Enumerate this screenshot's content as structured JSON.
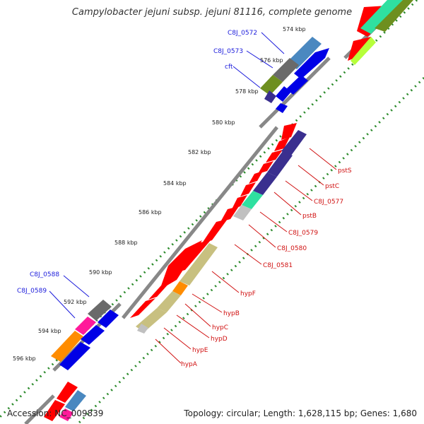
{
  "title": "Campylobacter jejuni subsp. jejuni 81116, complete genome",
  "footer": {
    "accession": "Accession: NC_009839",
    "topology": "Topology: circular; Length: 1,628,115 bp; Genes: 1,680"
  },
  "ticks": [
    "574 kbp",
    "576 kbp",
    "578 kbp",
    "580 kbp",
    "582 kbp",
    "584 kbp",
    "586 kbp",
    "588 kbp",
    "590 kbp",
    "592 kbp",
    "594 kbp",
    "596 kbp"
  ],
  "labels_blue": [
    "C8J_0572",
    "C8J_0573",
    "cft",
    "C8J_0588",
    "C8J_0589"
  ],
  "labels_red": [
    "pstS",
    "pstC",
    "C8J_0577",
    "pstB",
    "C8J_0579",
    "C8J_0580",
    "C8J_0581",
    "hypF",
    "hypB",
    "hypC",
    "hypD",
    "hypE",
    "hypA"
  ],
  "colors": {
    "cds": "#ff0000",
    "blue_gene": "#0000e6",
    "navy": "#3a2f8f",
    "teal": "#2fe0a0",
    "olive": "#6e8f1f",
    "khaki": "#c8c080",
    "gray": "#6a6a6a",
    "magenta": "#ff1a9a",
    "orange": "#ff8c00",
    "steel": "#4a88c0",
    "lime": "#b6ff3a",
    "dots": "#2a8a2a"
  }
}
